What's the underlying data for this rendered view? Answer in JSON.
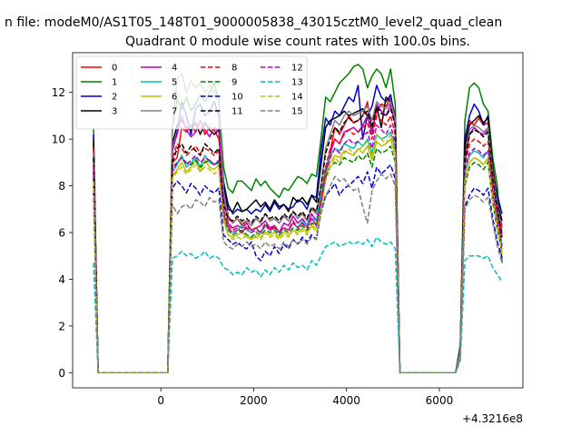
{
  "chart_data": {
    "type": "line",
    "suptitle": "n file: modeM0/AS1T05_148T01_9000005838_43015cztM0_level2_quad_clean",
    "title": "Quadrant 0 module wise count rates with 100.0s bins.",
    "xlabel": "",
    "ylabel": "",
    "offset_label": "+4.3216e8",
    "xlim": [
      -1900,
      7800
    ],
    "ylim": [
      -0.65,
      13.7
    ],
    "xticks": [
      0,
      2000,
      4000,
      6000
    ],
    "xtick_labels": [
      "0",
      "2000",
      "4000",
      "6000"
    ],
    "yticks": [
      0,
      2,
      4,
      6,
      8,
      10,
      12
    ],
    "ytick_labels": [
      "0",
      "2",
      "4",
      "6",
      "8",
      "10",
      "12"
    ],
    "grid": false,
    "legend_position": "upper-left",
    "legend_columns": 4,
    "x": [
      -1450,
      -1350,
      150,
      250,
      350,
      450,
      550,
      650,
      750,
      850,
      950,
      1050,
      1150,
      1250,
      1350,
      1450,
      1550,
      1650,
      1750,
      1850,
      1950,
      2050,
      2150,
      2250,
      2350,
      2450,
      2550,
      2650,
      2750,
      2850,
      2950,
      3050,
      3150,
      3250,
      3350,
      3450,
      3550,
      3650,
      3750,
      3850,
      3950,
      4050,
      4150,
      4250,
      4350,
      4450,
      4550,
      4650,
      4750,
      4850,
      4950,
      5050,
      5150,
      6350,
      6450,
      6550,
      6650,
      6750,
      6850,
      6950,
      7050,
      7150,
      7250,
      7350
    ],
    "series": [
      {
        "name": "0",
        "color": "#ff0000",
        "dash": "solid",
        "values": [
          9.8,
          0,
          0,
          9.0,
          9.2,
          10.5,
          10.3,
          10.6,
          10.3,
          10.8,
          10.2,
          10.5,
          10.4,
          10.0,
          8.0,
          6.7,
          6.4,
          6.6,
          6.3,
          6.5,
          6.3,
          6.6,
          6.4,
          6.8,
          6.5,
          6.6,
          6.4,
          6.7,
          6.5,
          6.9,
          6.6,
          6.8,
          6.5,
          7.0,
          6.8,
          7.6,
          8.6,
          9.5,
          10.5,
          10.2,
          10.6,
          11.0,
          10.7,
          10.8,
          11.0,
          11.6,
          10.4,
          11.2,
          11.5,
          11.4,
          11.8,
          11.0,
          0,
          0,
          1.0,
          9.5,
          10.8,
          10.6,
          10.9,
          10.6,
          10.7,
          8.8,
          7.5,
          6.2
        ]
      },
      {
        "name": "1",
        "color": "#008000",
        "dash": "solid",
        "values": [
          10.5,
          0,
          0,
          10.5,
          11.7,
          11.3,
          11.8,
          11.2,
          11.5,
          11.9,
          11.6,
          12.0,
          12.4,
          11.6,
          8.8,
          7.9,
          7.7,
          8.2,
          8.2,
          8.0,
          7.8,
          8.3,
          8.0,
          8.2,
          7.9,
          7.7,
          7.5,
          7.9,
          7.8,
          8.1,
          8.4,
          8.3,
          8.1,
          8.5,
          8.4,
          10.0,
          11.8,
          11.6,
          12.0,
          12.4,
          12.6,
          12.8,
          13.1,
          13.2,
          13.0,
          12.2,
          12.7,
          13.0,
          12.8,
          12.2,
          13.0,
          11.5,
          0,
          0,
          1.2,
          10.8,
          12.2,
          12.4,
          12.2,
          11.5,
          11.2,
          9.2,
          8.0,
          4.7
        ]
      },
      {
        "name": "2",
        "color": "#0000cc",
        "dash": "solid",
        "values": [
          10.2,
          0,
          0,
          9.5,
          10.3,
          11.6,
          11.0,
          10.2,
          11.3,
          11.5,
          11.0,
          11.2,
          11.6,
          11.0,
          8.2,
          7.2,
          6.8,
          7.0,
          6.9,
          7.0,
          6.8,
          7.0,
          6.9,
          7.2,
          6.9,
          7.3,
          7.0,
          7.2,
          7.0,
          7.1,
          7.4,
          7.3,
          7.0,
          7.6,
          7.5,
          9.5,
          10.9,
          10.6,
          11.2,
          11.0,
          11.4,
          11.8,
          11.6,
          12.3,
          10.0,
          11.0,
          11.4,
          12.3,
          11.8,
          11.6,
          11.9,
          10.8,
          0,
          0,
          1.1,
          10.0,
          11.0,
          11.5,
          11.2,
          10.6,
          11.0,
          8.6,
          7.6,
          6.8
        ]
      },
      {
        "name": "3",
        "color": "#000000",
        "dash": "solid",
        "values": [
          10.0,
          0,
          0,
          9.8,
          10.6,
          10.8,
          10.5,
          10.4,
          10.7,
          10.2,
          10.7,
          10.4,
          10.2,
          10.4,
          8.0,
          7.0,
          6.9,
          7.3,
          6.9,
          7.0,
          7.2,
          7.4,
          7.1,
          7.3,
          7.0,
          7.4,
          7.1,
          7.2,
          6.9,
          7.5,
          7.3,
          7.5,
          7.2,
          7.6,
          7.3,
          8.9,
          10.5,
          10.8,
          10.9,
          11.0,
          11.2,
          11.0,
          11.1,
          11.2,
          11.3,
          11.0,
          10.8,
          11.4,
          10.5,
          11.8,
          11.6,
          11.0,
          0,
          0,
          1.0,
          9.8,
          10.6,
          10.8,
          11.0,
          10.7,
          10.9,
          8.8,
          7.3,
          6.5
        ]
      },
      {
        "name": "4",
        "color": "#bf00bf",
        "dash": "solid",
        "values": [
          8.6,
          0,
          0,
          9.6,
          10.2,
          11.0,
          10.4,
          10.1,
          10.3,
          10.8,
          10.4,
          10.1,
          10.5,
          10.3,
          7.6,
          6.4,
          6.2,
          6.3,
          6.2,
          6.4,
          6.1,
          6.2,
          6.3,
          6.5,
          6.2,
          6.3,
          6.0,
          6.4,
          6.3,
          6.7,
          6.4,
          6.6,
          6.3,
          6.8,
          6.5,
          7.2,
          8.3,
          9.4,
          10.0,
          9.8,
          10.3,
          10.4,
          10.5,
          10.3,
          10.6,
          11.0,
          10.2,
          11.5,
          11.2,
          11.0,
          11.5,
          10.6,
          0,
          0,
          0.9,
          9.0,
          10.2,
          10.5,
          10.3,
          10.2,
          10.4,
          8.4,
          7.1,
          6.0
        ]
      },
      {
        "name": "5",
        "color": "#00bfbf",
        "dash": "solid",
        "values": [
          8.3,
          0,
          0,
          8.6,
          8.9,
          9.3,
          8.8,
          9.0,
          9.2,
          8.8,
          9.3,
          9.0,
          8.9,
          9.1,
          6.8,
          6.2,
          6.0,
          6.1,
          6.3,
          6.1,
          6.0,
          6.2,
          6.0,
          6.3,
          6.1,
          6.2,
          6.0,
          6.2,
          6.1,
          6.4,
          6.2,
          6.5,
          6.3,
          6.6,
          6.5,
          7.6,
          8.8,
          9.3,
          9.6,
          9.5,
          9.8,
          9.7,
          9.6,
          9.9,
          9.7,
          10.0,
          9.4,
          10.2,
          10.0,
          10.1,
          10.3,
          9.6,
          0,
          0,
          0.8,
          8.6,
          9.3,
          9.5,
          9.4,
          9.2,
          9.5,
          7.8,
          6.5,
          5.5
        ]
      },
      {
        "name": "6",
        "color": "#bfbf00",
        "dash": "solid",
        "values": [
          8.0,
          0,
          0,
          8.4,
          8.7,
          9.0,
          8.6,
          8.8,
          9.1,
          8.6,
          9.1,
          8.8,
          8.7,
          8.9,
          6.6,
          5.9,
          5.8,
          5.9,
          6.0,
          5.8,
          5.7,
          5.9,
          5.8,
          6.0,
          5.9,
          6.0,
          5.8,
          6.0,
          5.9,
          6.1,
          6.0,
          6.2,
          6.0,
          6.3,
          6.2,
          7.3,
          8.5,
          9.0,
          9.3,
          9.2,
          9.5,
          9.4,
          9.3,
          9.6,
          9.4,
          9.7,
          9.1,
          9.9,
          9.7,
          9.8,
          10.0,
          9.3,
          0,
          0,
          0.8,
          8.3,
          9.0,
          9.2,
          9.1,
          8.9,
          9.2,
          7.5,
          6.3,
          5.3
        ]
      },
      {
        "name": "7",
        "color": "#808080",
        "dash": "solid",
        "values": [
          9.5,
          0,
          0,
          10.5,
          12.6,
          12.8,
          12.0,
          12.5,
          12.2,
          12.4,
          12.0,
          12.3,
          12.0,
          11.8,
          7.8,
          6.6,
          6.4,
          6.6,
          6.4,
          6.5,
          6.3,
          6.6,
          6.4,
          6.8,
          6.5,
          6.6,
          6.4,
          6.7,
          6.5,
          6.9,
          6.6,
          6.8,
          6.5,
          7.0,
          6.8,
          8.0,
          9.6,
          10.2,
          10.8,
          10.6,
          11.0,
          11.2,
          11.0,
          11.1,
          11.2,
          11.4,
          10.8,
          11.6,
          11.4,
          11.3,
          11.6,
          10.9,
          0,
          0,
          1.0,
          9.2,
          10.4,
          10.6,
          10.5,
          10.3,
          10.5,
          8.5,
          7.2,
          5.9
        ]
      },
      {
        "name": "8",
        "color": "#ff0000",
        "dash": "dashed",
        "values": [
          9.6,
          0,
          0,
          9.2,
          9.8,
          9.6,
          9.3,
          9.5,
          9.7,
          9.4,
          9.6,
          9.5,
          9.3,
          9.5,
          7.0,
          6.3,
          6.1,
          6.2,
          6.0,
          6.3,
          6.1,
          6.2,
          6.0,
          6.4,
          6.1,
          6.3,
          6.0,
          6.2,
          6.1,
          6.5,
          6.2,
          6.4,
          6.2,
          6.6,
          6.3,
          7.4,
          8.8,
          9.6,
          10.0,
          9.8,
          10.2,
          10.4,
          10.2,
          10.3,
          10.5,
          10.7,
          10.0,
          11.0,
          10.8,
          10.6,
          11.0,
          10.2,
          0,
          0,
          0.9,
          8.8,
          9.8,
          10.0,
          9.9,
          9.7,
          9.9,
          8.0,
          6.8,
          5.7
        ]
      },
      {
        "name": "9",
        "color": "#008000",
        "dash": "dashed",
        "values": [
          8.4,
          0,
          0,
          8.8,
          9.0,
          9.2,
          9.0,
          8.9,
          9.1,
          8.8,
          9.0,
          9.1,
          8.9,
          9.0,
          6.8,
          6.1,
          5.9,
          6.0,
          6.1,
          5.9,
          5.8,
          6.0,
          5.9,
          6.1,
          6.0,
          6.1,
          5.9,
          6.1,
          6.0,
          6.2,
          6.1,
          6.3,
          6.1,
          6.4,
          6.3,
          7.2,
          8.4,
          8.8,
          9.0,
          8.9,
          9.2,
          9.1,
          9.0,
          9.3,
          9.1,
          9.4,
          8.8,
          9.6,
          9.4,
          9.5,
          9.7,
          9.0,
          0,
          0,
          0.8,
          8.0,
          8.8,
          9.0,
          8.9,
          8.7,
          9.0,
          7.3,
          6.1,
          5.2
        ]
      },
      {
        "name": "10",
        "color": "#0000cc",
        "dash": "dashed",
        "values": [
          7.8,
          0,
          0,
          7.9,
          8.2,
          8.0,
          7.7,
          8.1,
          7.9,
          7.6,
          8.0,
          7.8,
          7.7,
          7.9,
          5.9,
          5.7,
          5.5,
          5.6,
          5.4,
          5.3,
          5.6,
          5.0,
          4.8,
          5.2,
          5.0,
          5.4,
          5.1,
          5.5,
          5.3,
          5.7,
          5.5,
          5.8,
          5.6,
          5.9,
          5.7,
          6.9,
          7.6,
          7.8,
          8.1,
          7.6,
          7.9,
          8.0,
          8.2,
          8.4,
          8.1,
          8.6,
          7.9,
          8.8,
          8.5,
          8.7,
          8.9,
          8.3,
          0,
          0,
          0.7,
          7.1,
          7.6,
          7.9,
          7.8,
          7.6,
          7.9,
          6.6,
          5.6,
          4.9
        ]
      },
      {
        "name": "11",
        "color": "#000000",
        "dash": "dashed",
        "values": [
          9.2,
          0,
          0,
          9.0,
          9.6,
          9.8,
          9.4,
          9.7,
          9.5,
          9.3,
          9.8,
          9.6,
          9.4,
          9.6,
          7.2,
          6.6,
          6.5,
          6.7,
          6.5,
          6.6,
          6.4,
          6.7,
          6.5,
          6.8,
          6.6,
          6.7,
          6.5,
          6.8,
          6.6,
          6.9,
          6.7,
          6.9,
          6.6,
          7.1,
          6.9,
          8.0,
          9.4,
          10.0,
          10.5,
          10.3,
          10.7,
          10.9,
          10.7,
          10.8,
          11.0,
          11.2,
          10.5,
          11.4,
          11.1,
          11.0,
          11.3,
          10.6,
          0,
          0,
          0.9,
          9.2,
          10.2,
          10.4,
          10.3,
          10.1,
          10.3,
          8.3,
          7.0,
          5.8
        ]
      },
      {
        "name": "12",
        "color": "#bf00bf",
        "dash": "dashed",
        "values": [
          8.8,
          0,
          0,
          8.6,
          9.0,
          9.2,
          8.9,
          9.1,
          9.3,
          9.0,
          9.2,
          9.1,
          8.9,
          9.1,
          6.8,
          6.2,
          6.0,
          6.1,
          6.0,
          6.2,
          6.0,
          6.1,
          6.0,
          6.3,
          6.1,
          6.2,
          6.0,
          6.2,
          6.1,
          6.4,
          6.2,
          6.4,
          6.2,
          6.6,
          6.3,
          7.3,
          8.6,
          9.2,
          9.6,
          9.4,
          9.8,
          10.0,
          9.8,
          9.9,
          10.1,
          10.3,
          9.6,
          10.6,
          10.4,
          10.2,
          10.6,
          9.8,
          0,
          0,
          0.9,
          8.6,
          9.4,
          9.6,
          9.5,
          9.3,
          9.5,
          7.7,
          6.5,
          5.4
        ]
      },
      {
        "name": "13",
        "color": "#00bfbf",
        "dash": "dashed",
        "values": [
          4.7,
          0,
          0,
          4.9,
          5.0,
          5.2,
          5.0,
          5.1,
          4.9,
          5.0,
          5.2,
          4.9,
          5.0,
          4.9,
          4.5,
          4.4,
          4.2,
          4.3,
          4.2,
          4.5,
          4.3,
          4.4,
          4.1,
          4.4,
          4.2,
          4.5,
          4.3,
          4.6,
          4.4,
          4.7,
          4.5,
          4.6,
          4.4,
          4.8,
          4.6,
          5.0,
          5.4,
          5.5,
          5.6,
          5.4,
          5.5,
          5.6,
          5.5,
          5.6,
          5.5,
          5.7,
          5.4,
          5.8,
          5.6,
          5.5,
          5.6,
          5.3,
          0,
          0,
          0.5,
          4.8,
          5.0,
          5.0,
          5.0,
          4.9,
          5.0,
          4.5,
          4.2,
          3.9
        ]
      },
      {
        "name": "14",
        "color": "#bfbf00",
        "dash": "dashed",
        "values": [
          8.2,
          0,
          0,
          8.3,
          8.6,
          8.8,
          8.5,
          8.7,
          8.9,
          8.6,
          8.8,
          8.7,
          8.5,
          8.7,
          6.5,
          5.9,
          5.7,
          5.8,
          5.7,
          5.9,
          5.7,
          5.8,
          5.7,
          6.0,
          5.8,
          5.9,
          5.7,
          5.9,
          5.8,
          6.1,
          5.9,
          6.1,
          5.9,
          6.3,
          6.0,
          7.0,
          8.2,
          8.8,
          9.2,
          9.0,
          9.4,
          9.6,
          9.4,
          9.5,
          9.7,
          9.9,
          9.2,
          10.2,
          10.0,
          9.8,
          10.2,
          9.4,
          0,
          0,
          0.8,
          8.2,
          9.0,
          9.2,
          9.1,
          8.9,
          9.1,
          7.4,
          6.2,
          5.1
        ]
      },
      {
        "name": "15",
        "color": "#808080",
        "dash": "dashed",
        "values": [
          7.5,
          0,
          0,
          7.2,
          6.8,
          7.1,
          7.2,
          7.0,
          7.4,
          7.3,
          7.1,
          7.5,
          7.3,
          7.4,
          5.6,
          5.4,
          5.3,
          5.5,
          5.4,
          5.6,
          5.4,
          5.5,
          5.3,
          5.6,
          5.4,
          5.5,
          5.3,
          5.6,
          5.4,
          5.7,
          5.5,
          5.7,
          5.5,
          5.8,
          5.7,
          6.8,
          7.5,
          8.0,
          8.4,
          8.2,
          8.3,
          8.0,
          7.8,
          7.9,
          7.1,
          6.4,
          7.8,
          8.2,
          8.5,
          8.3,
          8.5,
          8.0,
          0,
          0,
          0.7,
          7.0,
          7.4,
          7.6,
          7.5,
          7.3,
          7.5,
          6.4,
          5.4,
          4.7
        ]
      }
    ]
  }
}
